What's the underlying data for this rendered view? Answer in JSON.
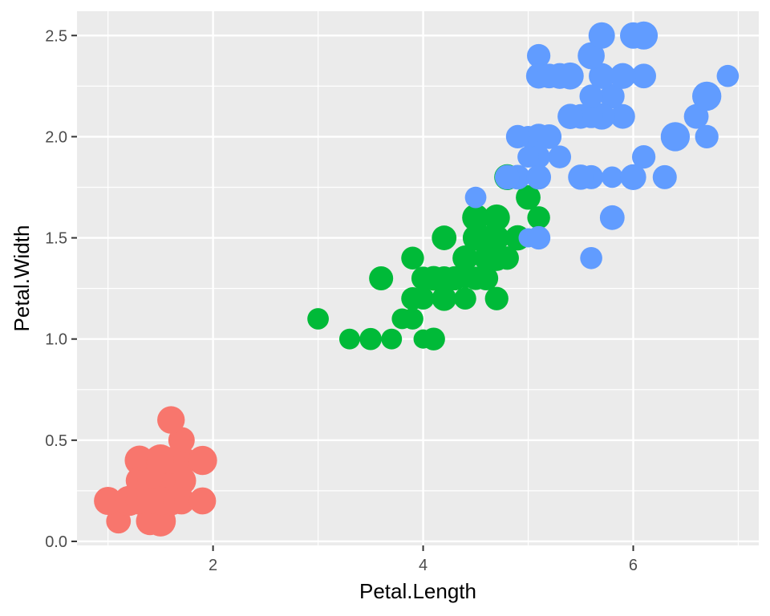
{
  "chart_data": {
    "type": "scatter",
    "title": "",
    "xlabel": "Petal.Length",
    "ylabel": "Petal.Width",
    "xlim": [
      0.705,
      7.195
    ],
    "ylim": [
      -0.02,
      2.62
    ],
    "x_ticks": [
      2,
      4,
      6
    ],
    "y_ticks": [
      0.0,
      0.5,
      1.0,
      1.5,
      2.0,
      2.5
    ],
    "x_tick_labels": [
      "2",
      "4",
      "6"
    ],
    "y_tick_labels": [
      "0.0",
      "0.5",
      "1.0",
      "1.5",
      "2.0",
      "2.5"
    ],
    "grid": true,
    "panel_background": "#ebebeb",
    "legend": "none",
    "point_size_range": [
      11,
      20
    ],
    "series": [
      {
        "color": "#f8766d",
        "points": [
          [
            1.4,
            0.2,
            3.5
          ],
          [
            1.4,
            0.2,
            3.0
          ],
          [
            1.3,
            0.2,
            3.2
          ],
          [
            1.5,
            0.2,
            3.1
          ],
          [
            1.4,
            0.2,
            3.6
          ],
          [
            1.7,
            0.4,
            3.9
          ],
          [
            1.4,
            0.3,
            3.4
          ],
          [
            1.5,
            0.2,
            3.4
          ],
          [
            1.4,
            0.2,
            2.9
          ],
          [
            1.5,
            0.1,
            3.1
          ],
          [
            1.5,
            0.2,
            3.7
          ],
          [
            1.6,
            0.2,
            3.4
          ],
          [
            1.4,
            0.1,
            3.0
          ],
          [
            1.1,
            0.1,
            3.0
          ],
          [
            1.2,
            0.2,
            4.0
          ],
          [
            1.5,
            0.4,
            4.4
          ],
          [
            1.3,
            0.4,
            3.9
          ],
          [
            1.4,
            0.3,
            3.5
          ],
          [
            1.7,
            0.3,
            3.8
          ],
          [
            1.5,
            0.3,
            3.8
          ],
          [
            1.7,
            0.2,
            3.4
          ],
          [
            1.5,
            0.4,
            3.7
          ],
          [
            1.0,
            0.2,
            3.6
          ],
          [
            1.7,
            0.5,
            3.3
          ],
          [
            1.9,
            0.2,
            3.4
          ],
          [
            1.6,
            0.2,
            3.0
          ],
          [
            1.6,
            0.4,
            3.4
          ],
          [
            1.5,
            0.2,
            3.5
          ],
          [
            1.4,
            0.2,
            3.4
          ],
          [
            1.6,
            0.2,
            3.2
          ],
          [
            1.6,
            0.2,
            3.1
          ],
          [
            1.5,
            0.4,
            3.4
          ],
          [
            1.5,
            0.1,
            4.1
          ],
          [
            1.4,
            0.2,
            4.2
          ],
          [
            1.5,
            0.2,
            3.1
          ],
          [
            1.2,
            0.2,
            3.2
          ],
          [
            1.3,
            0.2,
            3.5
          ],
          [
            1.4,
            0.1,
            3.6
          ],
          [
            1.3,
            0.2,
            3.0
          ],
          [
            1.5,
            0.2,
            3.4
          ],
          [
            1.3,
            0.3,
            3.5
          ],
          [
            1.3,
            0.3,
            2.3
          ],
          [
            1.3,
            0.2,
            3.2
          ],
          [
            1.6,
            0.6,
            3.5
          ],
          [
            1.9,
            0.4,
            3.8
          ],
          [
            1.4,
            0.3,
            3.0
          ],
          [
            1.6,
            0.2,
            3.8
          ],
          [
            1.4,
            0.2,
            3.2
          ],
          [
            1.5,
            0.2,
            3.7
          ],
          [
            1.4,
            0.2,
            3.3
          ]
        ]
      },
      {
        "color": "#00ba38",
        "points": [
          [
            4.7,
            1.4,
            3.2
          ],
          [
            4.5,
            1.5,
            3.2
          ],
          [
            4.9,
            1.5,
            3.1
          ],
          [
            4.0,
            1.3,
            2.3
          ],
          [
            4.6,
            1.5,
            2.8
          ],
          [
            4.5,
            1.3,
            2.8
          ],
          [
            4.7,
            1.6,
            3.3
          ],
          [
            3.3,
            1.0,
            2.4
          ],
          [
            4.6,
            1.3,
            2.9
          ],
          [
            3.9,
            1.4,
            2.7
          ],
          [
            3.5,
            1.0,
            2.0
          ],
          [
            4.2,
            1.5,
            3.0
          ],
          [
            4.0,
            1.0,
            2.2
          ],
          [
            4.7,
            1.4,
            2.9
          ],
          [
            3.6,
            1.3,
            2.9
          ],
          [
            4.4,
            1.4,
            3.1
          ],
          [
            4.5,
            1.5,
            3.0
          ],
          [
            4.1,
            1.0,
            2.7
          ],
          [
            4.5,
            1.5,
            2.2
          ],
          [
            3.9,
            1.1,
            2.5
          ],
          [
            4.8,
            1.8,
            3.2
          ],
          [
            4.0,
            1.3,
            2.8
          ],
          [
            4.9,
            1.5,
            2.5
          ],
          [
            4.7,
            1.2,
            2.8
          ],
          [
            4.3,
            1.3,
            2.9
          ],
          [
            4.4,
            1.4,
            3.0
          ],
          [
            4.8,
            1.4,
            2.8
          ],
          [
            5.0,
            1.7,
            3.0
          ],
          [
            4.5,
            1.5,
            2.9
          ],
          [
            3.5,
            1.0,
            2.6
          ],
          [
            3.8,
            1.1,
            2.4
          ],
          [
            3.7,
            1.0,
            2.4
          ],
          [
            3.9,
            1.2,
            2.7
          ],
          [
            5.1,
            1.6,
            2.7
          ],
          [
            4.5,
            1.5,
            3.0
          ],
          [
            4.5,
            1.6,
            3.4
          ],
          [
            4.7,
            1.5,
            3.1
          ],
          [
            4.4,
            1.3,
            2.3
          ],
          [
            4.1,
            1.3,
            3.0
          ],
          [
            4.0,
            1.3,
            2.5
          ],
          [
            4.4,
            1.2,
            2.6
          ],
          [
            4.6,
            1.4,
            3.0
          ],
          [
            4.0,
            1.2,
            2.6
          ],
          [
            3.3,
            1.0,
            2.3
          ],
          [
            4.2,
            1.3,
            2.7
          ],
          [
            4.2,
            1.2,
            3.0
          ],
          [
            4.2,
            1.3,
            2.9
          ],
          [
            4.3,
            1.3,
            2.9
          ],
          [
            3.0,
            1.1,
            2.5
          ],
          [
            4.1,
            1.3,
            2.8
          ]
        ]
      },
      {
        "color": "#619cff",
        "points": [
          [
            6.0,
            2.5,
            3.3
          ],
          [
            5.1,
            1.9,
            2.7
          ],
          [
            5.9,
            2.1,
            3.0
          ],
          [
            5.6,
            1.8,
            2.9
          ],
          [
            5.8,
            2.2,
            3.0
          ],
          [
            6.6,
            2.1,
            3.0
          ],
          [
            4.5,
            1.7,
            2.5
          ],
          [
            6.3,
            1.8,
            2.9
          ],
          [
            5.8,
            1.8,
            2.5
          ],
          [
            6.1,
            2.5,
            3.6
          ],
          [
            5.1,
            2.0,
            3.2
          ],
          [
            5.3,
            1.9,
            2.7
          ],
          [
            5.5,
            2.1,
            3.0
          ],
          [
            5.0,
            2.0,
            2.5
          ],
          [
            5.1,
            2.4,
            2.8
          ],
          [
            5.3,
            2.3,
            3.2
          ],
          [
            5.5,
            1.8,
            3.0
          ],
          [
            6.7,
            2.2,
            3.8
          ],
          [
            6.9,
            2.3,
            2.6
          ],
          [
            5.0,
            1.5,
            2.2
          ],
          [
            5.7,
            2.3,
            3.2
          ],
          [
            4.9,
            2.0,
            2.8
          ],
          [
            6.7,
            2.0,
            2.8
          ],
          [
            4.9,
            1.8,
            2.7
          ],
          [
            5.7,
            2.1,
            3.3
          ],
          [
            6.0,
            1.8,
            3.2
          ],
          [
            4.8,
            1.8,
            2.8
          ],
          [
            4.9,
            1.8,
            3.0
          ],
          [
            5.6,
            2.1,
            2.8
          ],
          [
            5.8,
            1.6,
            3.0
          ],
          [
            6.1,
            1.9,
            2.8
          ],
          [
            6.4,
            2.0,
            3.8
          ],
          [
            5.6,
            2.2,
            2.8
          ],
          [
            5.1,
            1.5,
            2.8
          ],
          [
            5.6,
            1.4,
            2.6
          ],
          [
            6.1,
            2.3,
            3.0
          ],
          [
            5.6,
            2.4,
            3.4
          ],
          [
            5.5,
            1.8,
            3.1
          ],
          [
            4.8,
            1.8,
            3.0
          ],
          [
            5.4,
            2.1,
            3.1
          ],
          [
            5.6,
            2.4,
            3.1
          ],
          [
            5.1,
            2.3,
            3.1
          ],
          [
            5.1,
            1.9,
            2.7
          ],
          [
            5.9,
            2.3,
            3.2
          ],
          [
            5.7,
            2.5,
            3.3
          ],
          [
            5.2,
            2.3,
            3.0
          ],
          [
            5.0,
            1.9,
            2.5
          ],
          [
            5.2,
            2.0,
            3.0
          ],
          [
            5.4,
            2.3,
            3.4
          ],
          [
            5.1,
            1.8,
            3.0
          ]
        ]
      }
    ]
  }
}
